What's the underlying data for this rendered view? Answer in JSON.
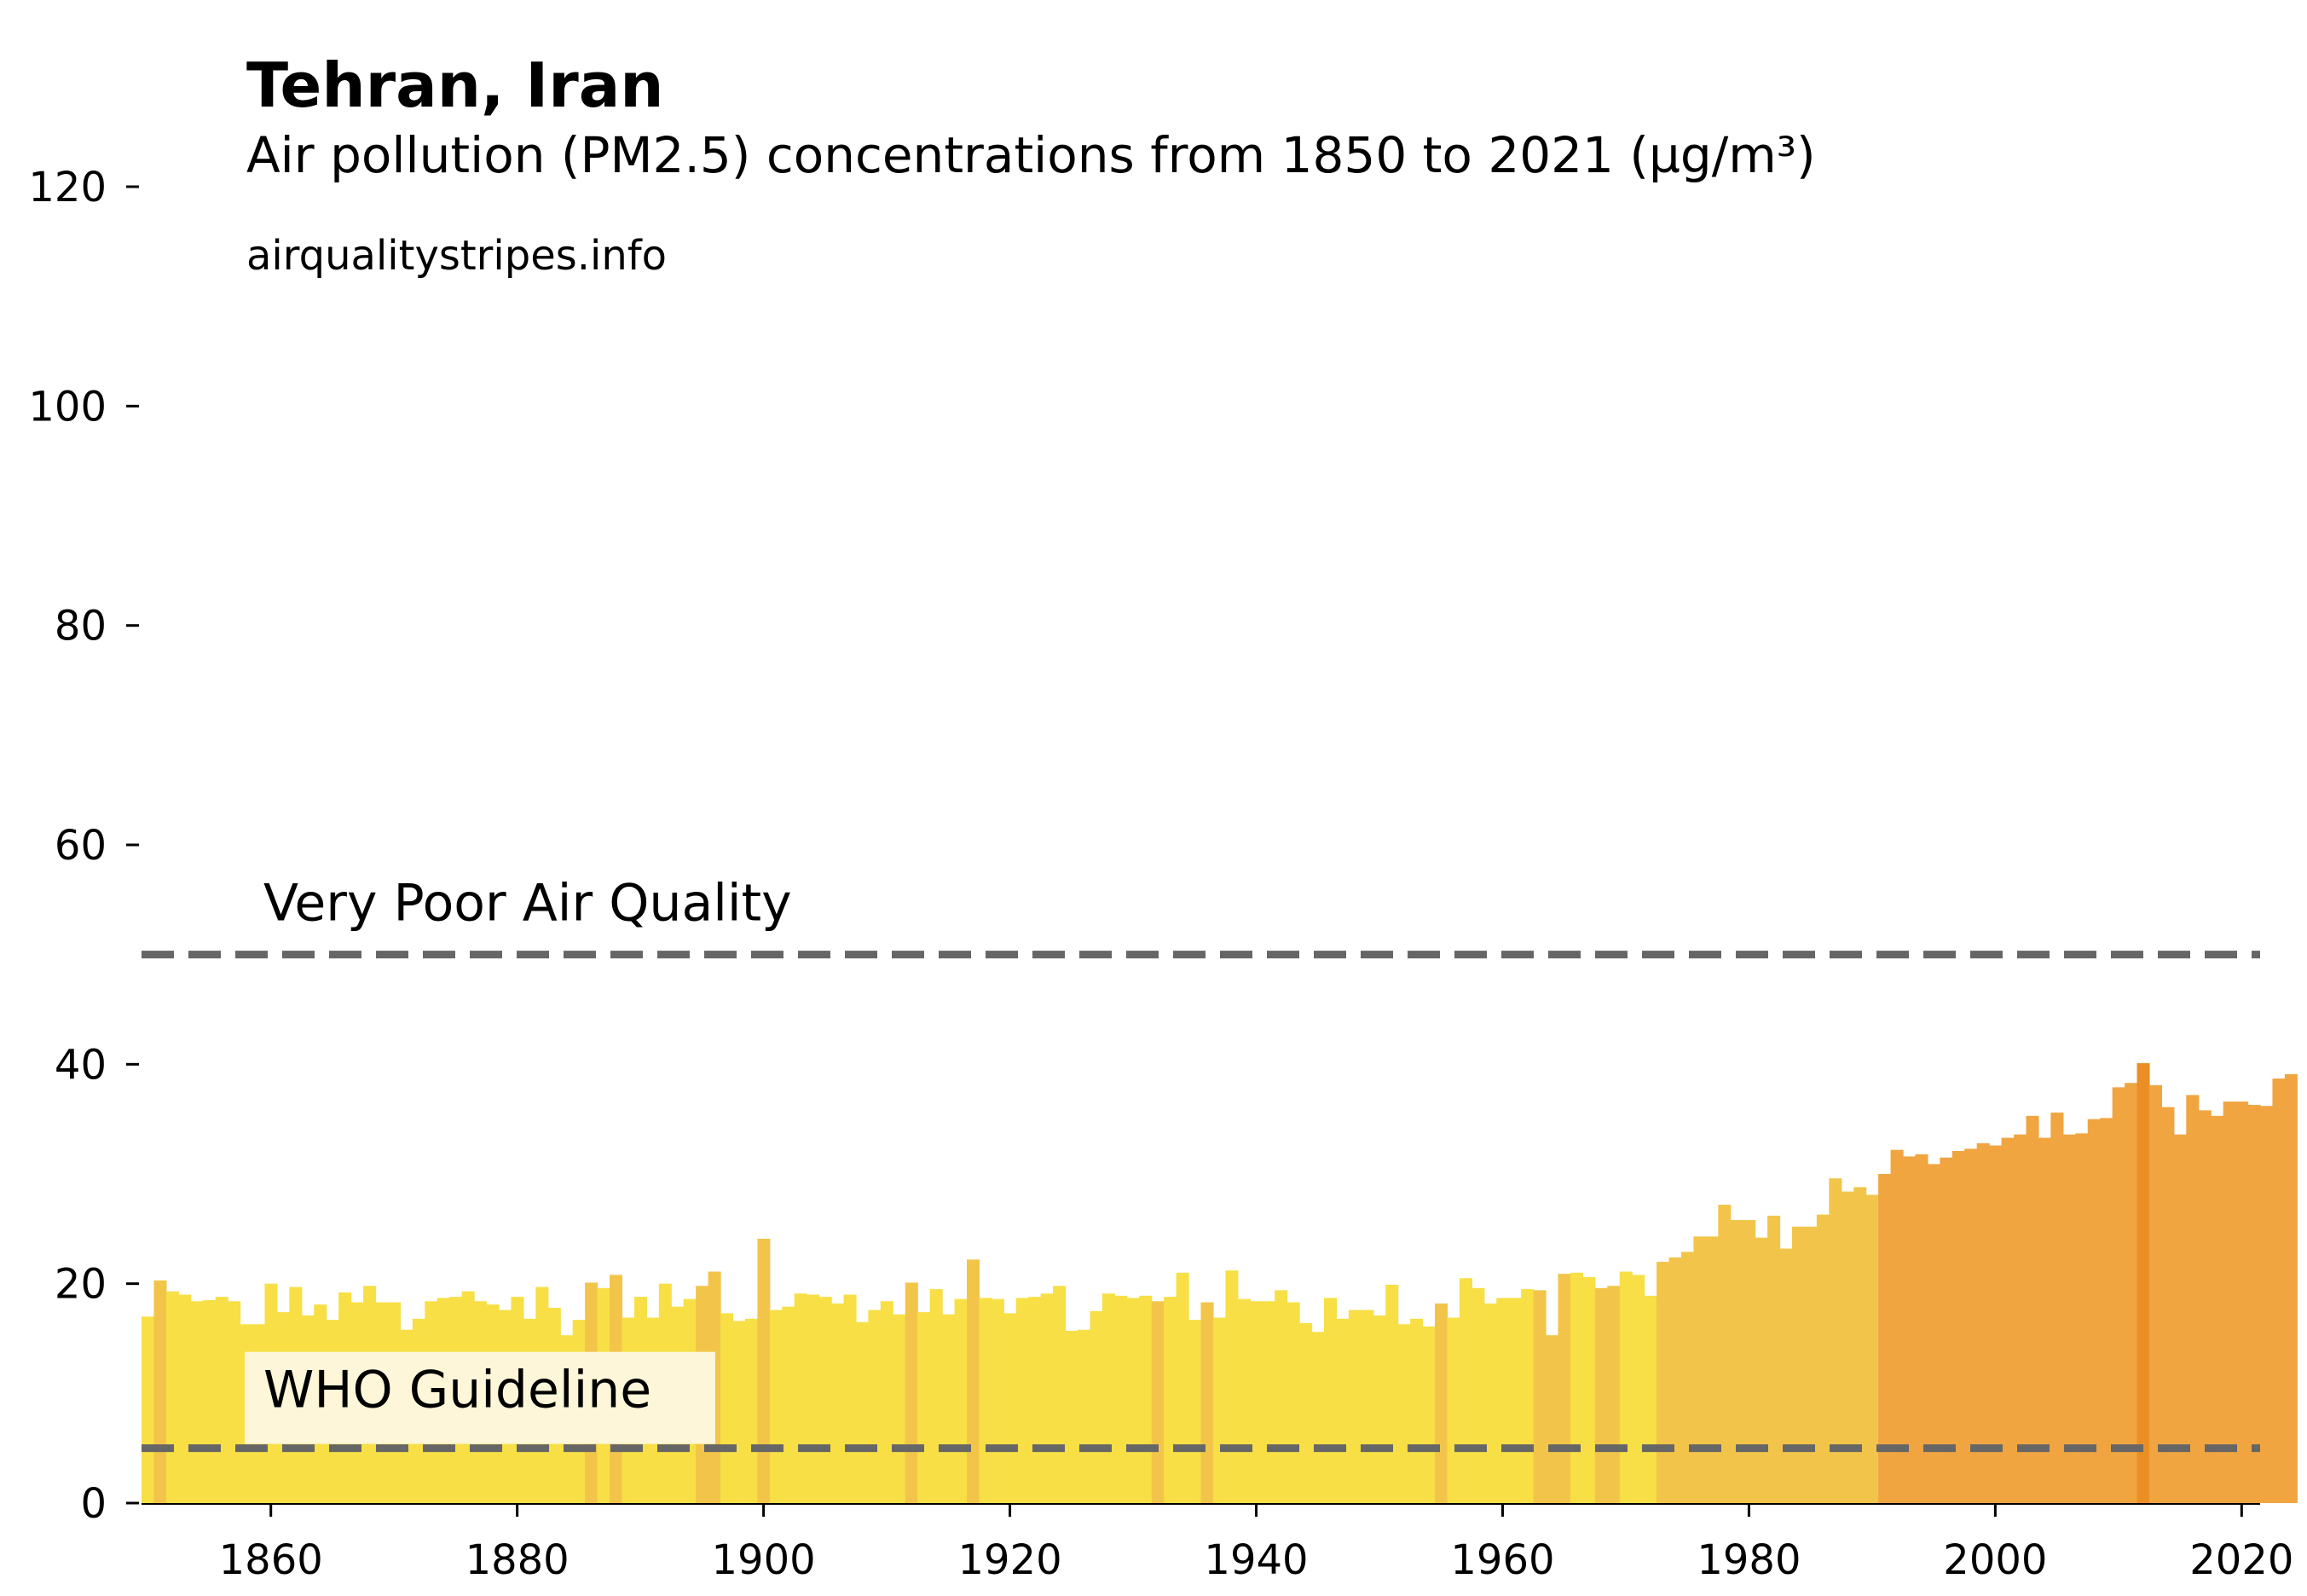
{
  "header": {
    "title": "Tehran, Iran",
    "subtitle": "Air pollution (PM2.5) concentrations from 1850 to 2021 (µg/m³)",
    "source": "airqualitystripes.info"
  },
  "chart_data": {
    "type": "bar",
    "x_start": 1850,
    "x_end": 2021,
    "ylim": [
      0,
      120
    ],
    "xlim": [
      1850,
      2022
    ],
    "yticks": [
      0,
      20,
      40,
      60,
      80,
      100,
      120
    ],
    "xticks": [
      1860,
      1880,
      1900,
      1920,
      1940,
      1960,
      1980,
      2000,
      2020
    ],
    "grid": false,
    "values": [
      17.0,
      20.3,
      19.3,
      19.0,
      18.4,
      18.5,
      18.8,
      18.4,
      16.3,
      16.3,
      20.0,
      17.4,
      19.7,
      17.1,
      18.1,
      16.7,
      19.2,
      18.3,
      19.8,
      18.3,
      18.3,
      15.8,
      16.8,
      18.4,
      18.7,
      18.8,
      19.3,
      18.4,
      18.1,
      17.6,
      18.8,
      16.8,
      19.7,
      17.8,
      15.3,
      16.7,
      20.1,
      19.6,
      20.8,
      16.9,
      18.8,
      16.9,
      20.0,
      17.9,
      18.6,
      19.8,
      21.1,
      17.3,
      16.6,
      16.8,
      24.1,
      17.6,
      17.9,
      19.1,
      19.0,
      18.8,
      18.2,
      19.0,
      16.5,
      17.6,
      18.4,
      17.2,
      20.1,
      17.4,
      19.5,
      17.2,
      18.6,
      22.2,
      18.7,
      18.6,
      17.3,
      18.7,
      18.8,
      19.1,
      19.8,
      15.7,
      15.8,
      17.5,
      19.1,
      18.9,
      18.7,
      18.9,
      18.4,
      18.8,
      21.0,
      16.7,
      18.3,
      16.9,
      21.2,
      18.6,
      18.4,
      18.4,
      19.4,
      18.3,
      16.4,
      15.6,
      18.7,
      16.8,
      17.6,
      17.6,
      17.1,
      19.9,
      16.3,
      16.8,
      16.1,
      18.2,
      16.9,
      20.5,
      19.6,
      18.2,
      18.7,
      18.7,
      19.5,
      19.4,
      15.3,
      20.9,
      21.0,
      20.6,
      19.6,
      19.8,
      21.1,
      20.8,
      18.9,
      22.0,
      22.4,
      22.9,
      24.3,
      24.3,
      27.2,
      25.8,
      25.8,
      24.2,
      26.2,
      23.2,
      25.2,
      25.2,
      26.3,
      29.6,
      28.4,
      28.8,
      28.1,
      30.0,
      32.2,
      31.6,
      31.8,
      30.9,
      31.5,
      32.1,
      32.3,
      32.8,
      32.6,
      33.3,
      33.6,
      35.3,
      33.3,
      35.6,
      33.6,
      33.7,
      35.0,
      35.1,
      37.9,
      38.3,
      40.1,
      38.1,
      36.1,
      33.6,
      37.2,
      35.8,
      35.3,
      36.6,
      36.6,
      36.3,
      36.2,
      38.7,
      39.1
    ],
    "highlight_years": [
      1851,
      1886,
      1888,
      1895,
      1896,
      1900,
      1912,
      1917,
      1932,
      1936,
      1955,
      1963,
      1964,
      1965,
      1968,
      1969
    ],
    "guidelines": [
      {
        "label": "Very Poor Air Quality",
        "value": 50
      },
      {
        "label": "WHO Guideline",
        "value": 5
      }
    ],
    "colors": {
      "band_low": "#f7df45",
      "band_low_accent": "#f2c54a",
      "band_mid": "#f2c54a",
      "band_high": "#f0a541",
      "band_peak": "#eb8f24",
      "guideline": "#666666",
      "label_box": "#fdf6d8"
    }
  }
}
